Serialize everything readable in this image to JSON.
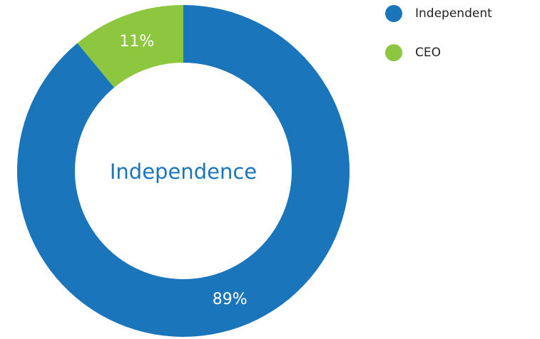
{
  "chart_data": {
    "type": "donut",
    "center_label": "Independence",
    "categories": [
      "Independent",
      "CEO"
    ],
    "values": [
      89,
      11
    ],
    "value_labels": [
      "89%",
      "11%"
    ],
    "colors": [
      "#1b75bb",
      "#8dc63f"
    ]
  }
}
